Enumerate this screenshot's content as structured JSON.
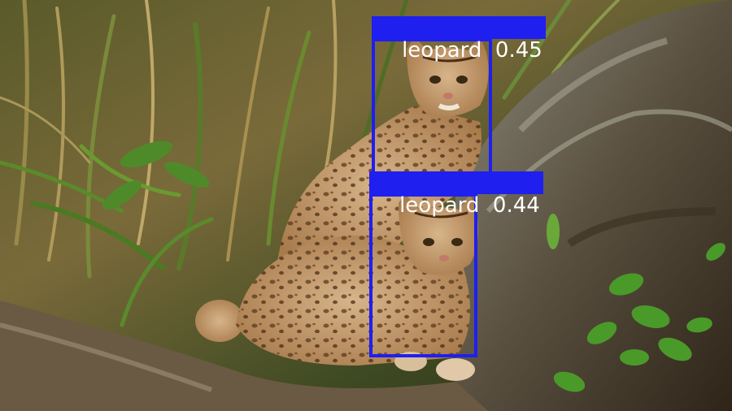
{
  "scene": {
    "description_icons": [
      "grass",
      "fallen-log",
      "leopard-cat",
      "leopard-cat",
      "plant-leaves"
    ]
  },
  "detections": [
    {
      "label": "leopard",
      "score": "0.45",
      "color": "#1f1ff0"
    },
    {
      "label": "leopard",
      "score": "0.44",
      "color": "#1f1ff0"
    }
  ]
}
